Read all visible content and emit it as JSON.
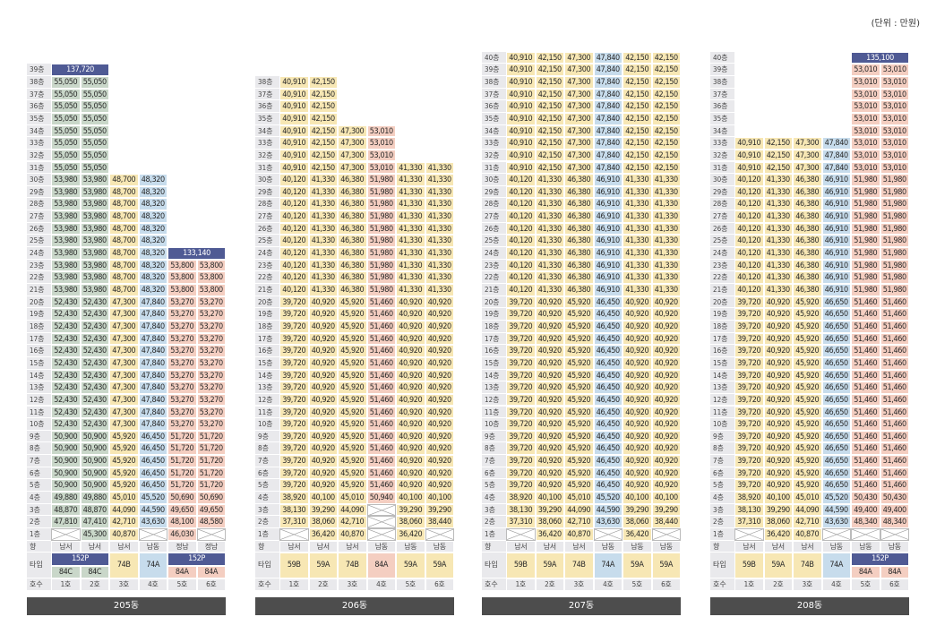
{
  "unit_label": "(단위 : 만원)",
  "row_labels": {
    "direction": "향",
    "type": "타입",
    "unit": "호수"
  },
  "buildings": [
    {
      "name": "205동",
      "floor_labels": {
        "top": "39층"
      },
      "units": [
        {
          "ho": "1호",
          "dir": "남서",
          "type": "84C",
          "color": "g",
          "top": 38,
          "top_price": "55,050",
          "penthouse_group": "152P"
        },
        {
          "ho": "2호",
          "dir": "남서",
          "type": "84C",
          "color": "g",
          "top": 38,
          "top_price": "55,050",
          "penthouse_group": "152P"
        },
        {
          "ho": "3호",
          "dir": "남서",
          "type": "74B",
          "color": "y",
          "top": 30
        },
        {
          "ho": "4호",
          "dir": "남동",
          "type": "74A",
          "color": "b",
          "top": 30
        },
        {
          "ho": "5호",
          "dir": "정남",
          "type": "84A",
          "color": "p",
          "top": 23,
          "penthouse_group": "152P"
        },
        {
          "ho": "6호",
          "dir": "정남",
          "type": "84A",
          "color": "p",
          "top": 23,
          "penthouse_group": "152P"
        }
      ],
      "penthouses": [
        {
          "units": [
            1,
            2
          ],
          "floor": 39,
          "price": "137,720"
        },
        {
          "units": [
            5,
            6
          ],
          "floor": 24,
          "price": "133,140"
        }
      ],
      "price_bands": [
        {
          "from": 31,
          "to": 38,
          "prices": [
            "55,050",
            "55,050",
            null,
            null,
            null,
            null
          ]
        },
        {
          "from": 24,
          "to": 30,
          "prices": [
            "53,980",
            "53,980",
            "48,700",
            "48,320",
            null,
            null
          ]
        },
        {
          "from": 21,
          "to": 23,
          "prices": [
            "53,980",
            "53,980",
            "48,700",
            "48,320",
            "53,800",
            "53,800"
          ]
        },
        {
          "from": 10,
          "to": 20,
          "prices": [
            "52,430",
            "52,430",
            "47,300",
            "47,840",
            "53,270",
            "53,270"
          ]
        },
        {
          "from": 5,
          "to": 9,
          "prices": [
            "50,900",
            "50,900",
            "45,920",
            "46,450",
            "51,720",
            "51,720"
          ]
        },
        {
          "from": 4,
          "to": 4,
          "prices": [
            "49,880",
            "49,880",
            "45,010",
            "45,520",
            "50,690",
            "50,690"
          ]
        },
        {
          "from": 3,
          "to": 3,
          "prices": [
            "48,870",
            "48,870",
            "44,090",
            "44,590",
            "49,650",
            "49,650"
          ]
        },
        {
          "from": 2,
          "to": 2,
          "prices": [
            "47,810",
            "47,410",
            "42,710",
            "43,630",
            "48,100",
            "48,580"
          ]
        },
        {
          "from": 1,
          "to": 1,
          "prices": [
            "",
            "45,300",
            "40,870",
            "",
            "46,030",
            ""
          ]
        }
      ]
    },
    {
      "name": "206동",
      "units": [
        {
          "ho": "1호",
          "dir": "남서",
          "type": "59B",
          "color": "y"
        },
        {
          "ho": "2호",
          "dir": "남서",
          "type": "59A",
          "color": "y"
        },
        {
          "ho": "3호",
          "dir": "남서",
          "type": "74B",
          "color": "y"
        },
        {
          "ho": "4호",
          "dir": "남동",
          "type": "84A",
          "color": "p"
        },
        {
          "ho": "5호",
          "dir": "남동",
          "type": "59A",
          "color": "y"
        },
        {
          "ho": "6호",
          "dir": "남동",
          "type": "59A",
          "color": "y"
        }
      ],
      "price_bands": [
        {
          "from": 35,
          "to": 38,
          "prices": [
            "40,910",
            "42,150",
            null,
            null,
            null,
            null
          ]
        },
        {
          "from": 32,
          "to": 34,
          "prices": [
            "40,910",
            "42,150",
            "47,300",
            "53,010",
            null,
            null
          ]
        },
        {
          "from": 31,
          "to": 31,
          "prices": [
            "40,910",
            "42,150",
            "47,300",
            "53,010",
            "41,330",
            "41,330"
          ]
        },
        {
          "from": 21,
          "to": 30,
          "prices": [
            "40,120",
            "41,330",
            "46,380",
            "51,980",
            "41,330",
            "41,330"
          ]
        },
        {
          "from": 5,
          "to": 20,
          "prices": [
            "39,720",
            "40,920",
            "45,920",
            "51,460",
            "40,920",
            "40,920"
          ]
        },
        {
          "from": 4,
          "to": 4,
          "prices": [
            "38,920",
            "40,100",
            "45,010",
            "50,940",
            "40,100",
            "40,100"
          ]
        },
        {
          "from": 3,
          "to": 3,
          "prices": [
            "38,130",
            "39,290",
            "44,090",
            "",
            "39,290",
            "39,290"
          ]
        },
        {
          "from": 2,
          "to": 2,
          "prices": [
            "37,310",
            "38,060",
            "42,710",
            "",
            "38,060",
            "38,440"
          ]
        },
        {
          "from": 1,
          "to": 1,
          "prices": [
            "",
            "36,420",
            "40,870",
            "",
            "36,420",
            ""
          ]
        }
      ]
    },
    {
      "name": "207동",
      "units": [
        {
          "ho": "1호",
          "dir": "남서",
          "type": "59B",
          "color": "y"
        },
        {
          "ho": "2호",
          "dir": "남서",
          "type": "59A",
          "color": "y"
        },
        {
          "ho": "3호",
          "dir": "남서",
          "type": "74B",
          "color": "y"
        },
        {
          "ho": "4호",
          "dir": "남동",
          "type": "74A",
          "color": "b"
        },
        {
          "ho": "5호",
          "dir": "남동",
          "type": "59A",
          "color": "y"
        },
        {
          "ho": "6호",
          "dir": "남동",
          "type": "59A",
          "color": "y"
        }
      ],
      "price_bands": [
        {
          "from": 31,
          "to": 40,
          "prices": [
            "40,910",
            "42,150",
            "47,300",
            "47,840",
            "42,150",
            "42,150"
          ]
        },
        {
          "from": 21,
          "to": 30,
          "prices": [
            "40,120",
            "41,330",
            "46,380",
            "46,910",
            "41,330",
            "41,330"
          ]
        },
        {
          "from": 5,
          "to": 20,
          "prices": [
            "39,720",
            "40,920",
            "45,920",
            "46,450",
            "40,920",
            "40,920"
          ]
        },
        {
          "from": 4,
          "to": 4,
          "prices": [
            "38,920",
            "40,100",
            "45,010",
            "45,520",
            "40,100",
            "40,100"
          ]
        },
        {
          "from": 3,
          "to": 3,
          "prices": [
            "38,130",
            "39,290",
            "44,090",
            "44,590",
            "39,290",
            "39,290"
          ]
        },
        {
          "from": 2,
          "to": 2,
          "prices": [
            "37,310",
            "38,060",
            "42,710",
            "43,630",
            "38,060",
            "38,440"
          ]
        },
        {
          "from": 1,
          "to": 1,
          "prices": [
            "",
            "36,420",
            "40,870",
            "",
            "36,420",
            ""
          ]
        }
      ]
    },
    {
      "name": "208동",
      "units": [
        {
          "ho": "1호",
          "dir": "남서",
          "type": "59B",
          "color": "y"
        },
        {
          "ho": "2호",
          "dir": "남서",
          "type": "59A",
          "color": "y"
        },
        {
          "ho": "3호",
          "dir": "남서",
          "type": "74B",
          "color": "y"
        },
        {
          "ho": "4호",
          "dir": "남동",
          "type": "74A",
          "color": "b"
        },
        {
          "ho": "5호",
          "dir": "남동",
          "type": "84A",
          "color": "p",
          "penthouse_group": "152P"
        },
        {
          "ho": "6호",
          "dir": "남동",
          "type": "84A",
          "color": "p",
          "penthouse_group": "152P"
        }
      ],
      "penthouses": [
        {
          "units": [
            5,
            6
          ],
          "floor": 40,
          "price": "135,100"
        }
      ],
      "price_bands": [
        {
          "from": 34,
          "to": 39,
          "prices": [
            null,
            null,
            null,
            null,
            "53,010",
            "53,010"
          ]
        },
        {
          "from": 31,
          "to": 33,
          "prices": [
            "40,910",
            "42,150",
            "47,300",
            "47,840",
            "53,010",
            "53,010"
          ]
        },
        {
          "from": 21,
          "to": 30,
          "prices": [
            "40,120",
            "41,330",
            "46,380",
            "46,910",
            "51,980",
            "51,980"
          ]
        },
        {
          "from": 5,
          "to": 20,
          "prices": [
            "39,720",
            "40,920",
            "45,920",
            "46,650",
            "51,460",
            "51,460"
          ]
        },
        {
          "from": 4,
          "to": 4,
          "prices": [
            "38,920",
            "40,100",
            "45,010",
            "45,520",
            "50,430",
            "50,430"
          ]
        },
        {
          "from": 3,
          "to": 3,
          "prices": [
            "38,130",
            "39,290",
            "44,090",
            "44,590",
            "49,400",
            "49,400"
          ]
        },
        {
          "from": 2,
          "to": 2,
          "prices": [
            "37,310",
            "38,060",
            "42,710",
            "43,630",
            "48,340",
            "48,340"
          ]
        },
        {
          "from": 1,
          "to": 1,
          "prices": [
            "",
            "36,420",
            "40,870",
            "",
            "",
            ""
          ]
        }
      ]
    }
  ]
}
